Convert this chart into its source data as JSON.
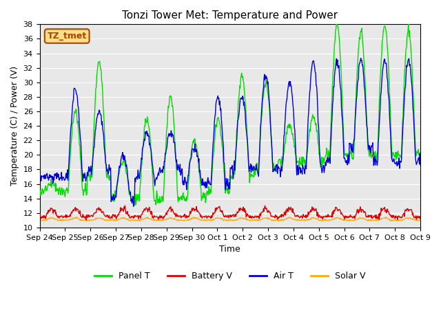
{
  "title": "Tonzi Tower Met: Temperature and Power",
  "xlabel": "Time",
  "ylabel": "Temperature (C) / Power (V)",
  "xtick_labels": [
    "Sep 24",
    "Sep 25",
    "Sep 26",
    "Sep 27",
    "Sep 28",
    "Sep 29",
    "Sep 30",
    "Oct 1",
    "Oct 2",
    "Oct 3",
    "Oct 4",
    "Oct 5",
    "Oct 6",
    "Oct 7",
    "Oct 8",
    "Oct 9"
  ],
  "ylim": [
    10,
    38
  ],
  "yticks": [
    10,
    12,
    14,
    16,
    18,
    20,
    22,
    24,
    26,
    28,
    30,
    32,
    34,
    36,
    38
  ],
  "bg_color": "#e8e8e8",
  "panel_T_color": "#00dd00",
  "battery_V_color": "#dd0000",
  "air_T_color": "#0000dd",
  "solar_V_color": "#ffaa00",
  "annotation_text": "TZ_tmet",
  "annotation_bg": "#ffdd88",
  "annotation_border": "#aa4400",
  "legend_labels": [
    "Panel T",
    "Battery V",
    "Air T",
    "Solar V"
  ],
  "n_days": 16,
  "n_points_per_day": 48
}
